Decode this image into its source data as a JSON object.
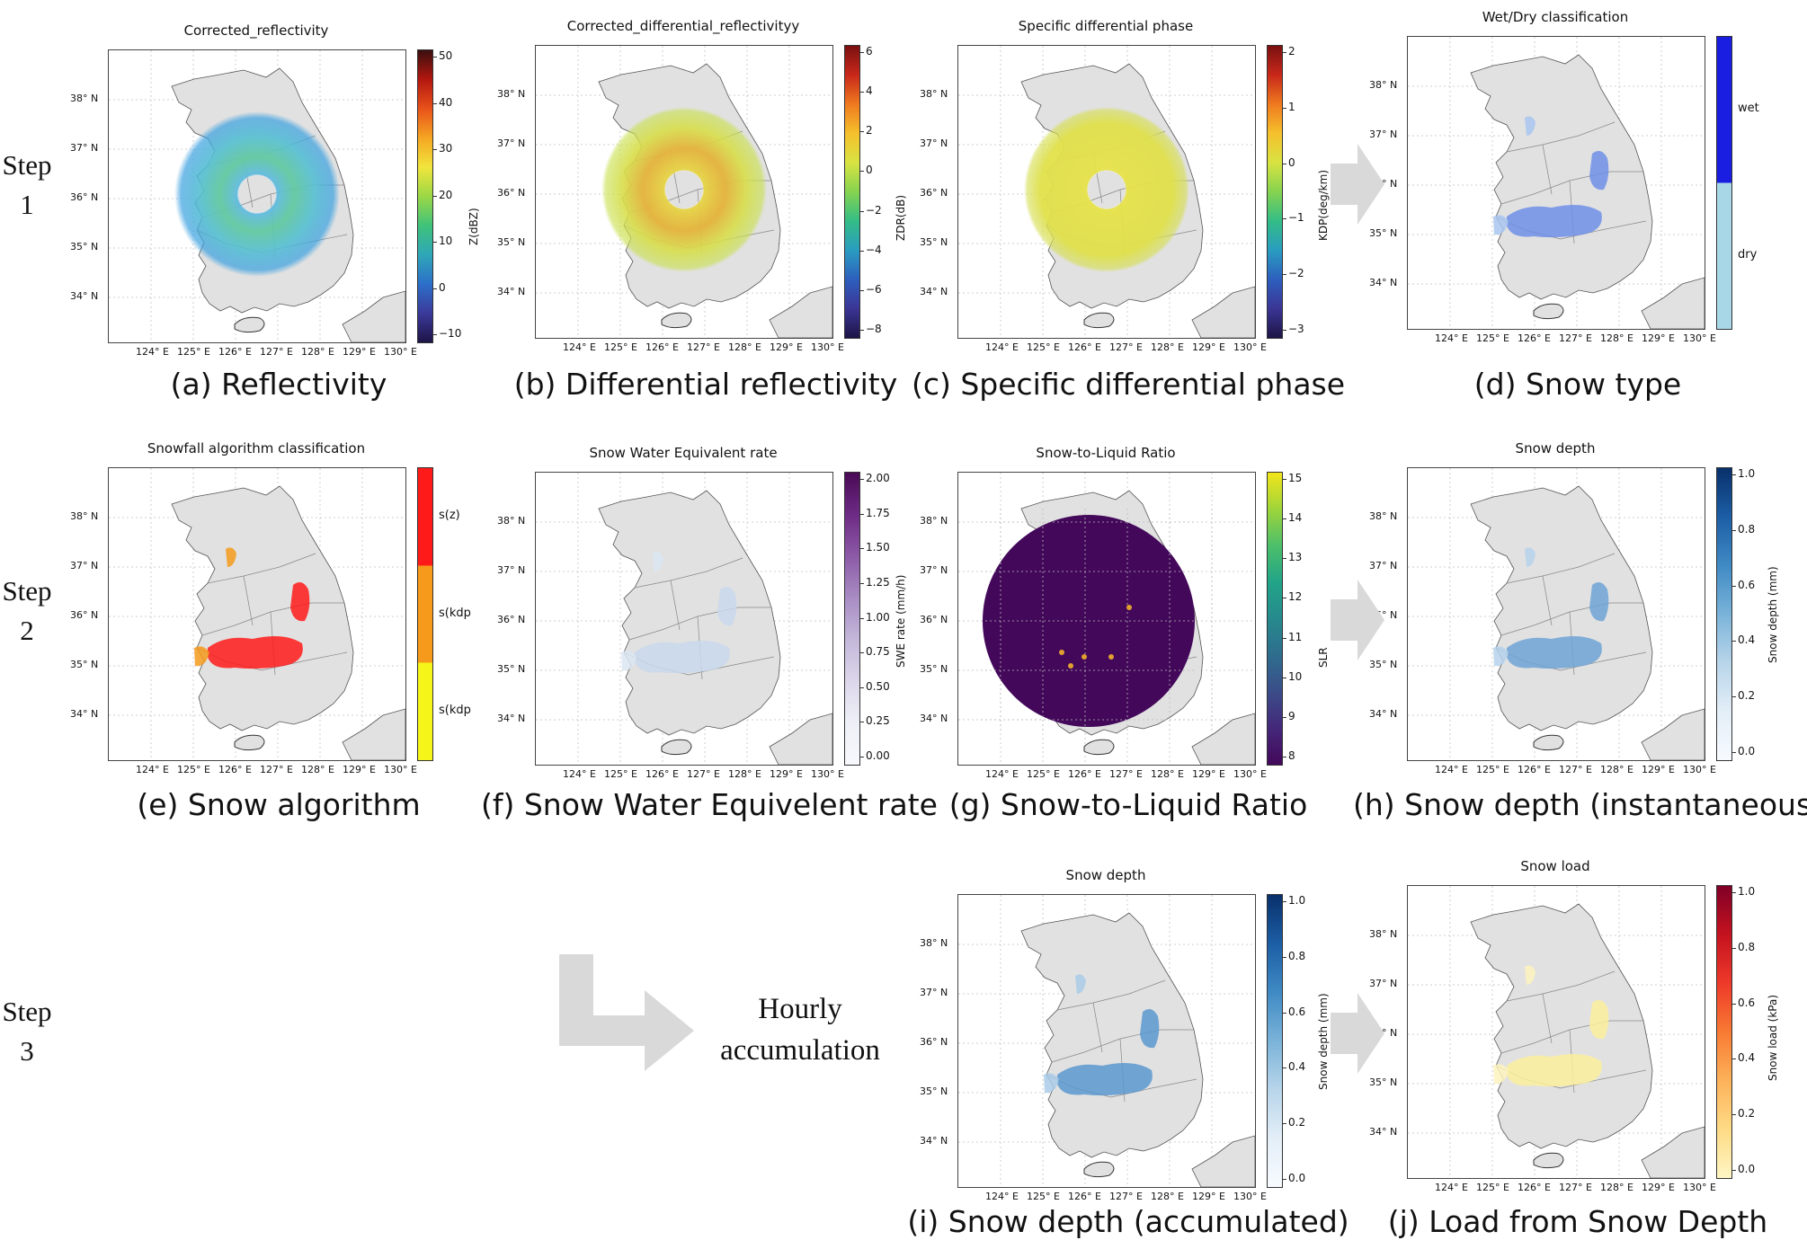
{
  "steps": [
    {
      "word": "Step",
      "num": "1"
    },
    {
      "word": "Step",
      "num": "2"
    },
    {
      "word": "Step",
      "num": "3"
    }
  ],
  "accumulation": {
    "line1": "Hourly",
    "line2": "accumulation"
  },
  "lat_labels": [
    "38° N",
    "37° N",
    "36° N",
    "35° N",
    "34° N"
  ],
  "lon_labels": [
    "124° E",
    "125° E",
    "126° E",
    "127° E",
    "128° E",
    "129° E",
    "130° E"
  ],
  "panels": [
    {
      "id": "a",
      "title": "Corrected_reflectivity",
      "caption": "(a) Reflectivity",
      "cbar_label": "Z(dBZ)",
      "ticks": [
        "50",
        "40",
        "30",
        "20",
        "10",
        "0",
        "−10"
      ],
      "gradient": [
        "#3a0f0f",
        "#b3170f",
        "#e8521a",
        "#f5a623",
        "#f1e53c",
        "#9bd846",
        "#3fc27a",
        "#2fa7b8",
        "#2c6fc9",
        "#3b3a9b",
        "#1d1446"
      ],
      "fill": "ring-z"
    },
    {
      "id": "b",
      "title": "Corrected_differential_reflectivityy",
      "caption": "(b) Differential reflectivity",
      "cbar_label": "ZDR(dB)",
      "ticks": [
        "6",
        "4",
        "2",
        "0",
        "−2",
        "−4",
        "−6",
        "−8"
      ],
      "gradient": [
        "#7a1010",
        "#c8281a",
        "#ef7a1f",
        "#f5c02c",
        "#d8e342",
        "#85d34f",
        "#33bd86",
        "#2a9cc0",
        "#2d5fbe",
        "#3b3595",
        "#1d1446"
      ],
      "fill": "ring-zdr"
    },
    {
      "id": "c",
      "title": "Specific differential phase",
      "caption": "(c) Specific differential phase",
      "cbar_label": "KDP(deg/km)",
      "ticks": [
        "2",
        "1",
        "0",
        "−1",
        "−2",
        "−3"
      ],
      "gradient": [
        "#7a1010",
        "#c8281a",
        "#ef7a1f",
        "#f5c02c",
        "#d8e342",
        "#85d34f",
        "#33bd86",
        "#2a9cc0",
        "#2d5fbe",
        "#3b3595",
        "#1d1446"
      ],
      "fill": "ring-kdp"
    },
    {
      "id": "d",
      "title": "Wet/Dry classification",
      "caption": "(d) Snow type",
      "categories": [
        "wet",
        "dry"
      ],
      "cat_colors": [
        "#1a1ee0",
        "#a8d8e8"
      ],
      "fill": "snow-blue"
    },
    {
      "id": "e",
      "title": "Snowfall algorithm classification",
      "caption": "(e) Snow algorithm",
      "categories": [
        "s(z)",
        "s(kdp",
        "s(kdp"
      ],
      "cat_colors": [
        "#ff1a1a",
        "#f59a1a",
        "#f5f51a"
      ],
      "fill": "snow-red"
    },
    {
      "id": "f",
      "title": "Snow Water Equivalent rate",
      "caption": "(f) Snow Water Equivelent rate",
      "cbar_label": "SWE rate (mm/h)",
      "ticks": [
        "2.00",
        "1.75",
        "1.50",
        "1.25",
        "1.00",
        "0.75",
        "0.50",
        "0.25",
        "0.00"
      ],
      "gradient": [
        "#4a0a55",
        "#6e2a85",
        "#8c5aa7",
        "#a88cc3",
        "#c4b7da",
        "#dcd6ea",
        "#eef0f7",
        "#f7f8fc"
      ],
      "fill": "snow-faint"
    },
    {
      "id": "g",
      "title": "Snow-to-Liquid Ratio",
      "caption": "(g) Snow-to-Liquid Ratio",
      "cbar_label": "SLR",
      "ticks": [
        "15",
        "14",
        "13",
        "12",
        "11",
        "10",
        "9",
        "8"
      ],
      "gradient": [
        "#f2e51a",
        "#9fd53a",
        "#4cbf6a",
        "#22a488",
        "#268a8d",
        "#2e6d8e",
        "#3b4d89",
        "#44287a",
        "#43085a"
      ],
      "fill": "disc-purple"
    },
    {
      "id": "h",
      "title": "Snow depth",
      "caption": "(h) Snow depth (instantaneous)",
      "cbar_label": "Snow depth (mm)",
      "ticks": [
        "1.0",
        "0.8",
        "0.6",
        "0.4",
        "0.2",
        "0.0"
      ],
      "gradient": [
        "#08306b",
        "#1c5ea5",
        "#3f8ac4",
        "#7ab3d9",
        "#b8d5ea",
        "#e3eef7",
        "#f7fbff"
      ],
      "fill": "snow-blue-light"
    },
    {
      "id": "i",
      "title": "Snow depth",
      "caption": "(i) Snow depth (accumulated)",
      "cbar_label": "Snow depth (mm)",
      "ticks": [
        "1.0",
        "0.8",
        "0.6",
        "0.4",
        "0.2",
        "0.0"
      ],
      "gradient": [
        "#08306b",
        "#1c5ea5",
        "#3f8ac4",
        "#7ab3d9",
        "#b8d5ea",
        "#e3eef7",
        "#f7fbff"
      ],
      "fill": "snow-blue-acc"
    },
    {
      "id": "j",
      "title": "Snow load",
      "caption": "(j) Load from Snow Depth",
      "cbar_label": "Snow load (kPa)",
      "ticks": [
        "1.0",
        "0.8",
        "0.6",
        "0.4",
        "0.2",
        "0.0"
      ],
      "gradient": [
        "#800026",
        "#c4121f",
        "#ee3a2a",
        "#f87a33",
        "#fdb25a",
        "#fedb85",
        "#fff6c4"
      ],
      "fill": "snow-yellow"
    }
  ]
}
